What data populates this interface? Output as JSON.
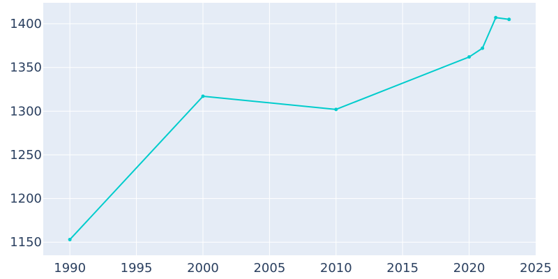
{
  "chart_data": {
    "type": "line",
    "title": "",
    "xlabel": "",
    "ylabel": "",
    "xlim": [
      1988,
      2025
    ],
    "ylim": [
      1135,
      1424
    ],
    "x_ticks": [
      1990,
      1995,
      2000,
      2005,
      2010,
      2015,
      2020,
      2025
    ],
    "y_ticks": [
      1150,
      1200,
      1250,
      1300,
      1350,
      1400
    ],
    "grid": true,
    "colors": {
      "plot_bg": "#e5ecf6",
      "grid": "#ffffff",
      "line": "#00cccc",
      "tick_text": "#2a3f5f"
    },
    "series": [
      {
        "x": [
          1990,
          2000,
          2010,
          2020,
          2021,
          2022,
          2023
        ],
        "y": [
          1153,
          1317,
          1302,
          1362,
          1372,
          1407,
          1405
        ]
      }
    ]
  }
}
